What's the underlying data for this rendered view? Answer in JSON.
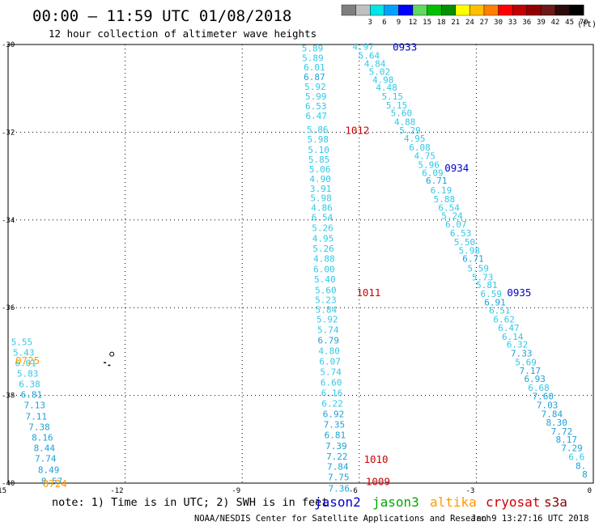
{
  "header": {
    "title": "00:00 – 11:59 UTC 01/08/2018",
    "subtitle": "12 hour collection of altimeter wave heights"
  },
  "colorbar": {
    "unit_label": "(ft)",
    "bins": [
      {
        "label": "",
        "color": "#7f7f7f"
      },
      {
        "label": "3",
        "color": "#c0c0c0"
      },
      {
        "label": "6",
        "color": "#00e5e5"
      },
      {
        "label": "9",
        "color": "#00a0ff"
      },
      {
        "label": "12",
        "color": "#0000ff"
      },
      {
        "label": "15",
        "color": "#5fd95f"
      },
      {
        "label": "18",
        "color": "#00c000"
      },
      {
        "label": "21",
        "color": "#009000"
      },
      {
        "label": "24",
        "color": "#ffff00"
      },
      {
        "label": "27",
        "color": "#ffc000"
      },
      {
        "label": "30",
        "color": "#ff8000"
      },
      {
        "label": "33",
        "color": "#ff0000"
      },
      {
        "label": "36",
        "color": "#c00000"
      },
      {
        "label": "39",
        "color": "#900000"
      },
      {
        "label": "42",
        "color": "#6a1a1a"
      },
      {
        "label": "45",
        "color": "#2a0a0a"
      },
      {
        "label": "70",
        "color": "#000000"
      }
    ]
  },
  "footer": {
    "note": "note: 1) Time is in UTC; 2) SWH is in feet",
    "credit": "NOAA/NESDIS Center for Satellite Applications and Research",
    "timestamp": "Jan  9 13:27:16 UTC 2018"
  },
  "legend": [
    {
      "name": "jason2",
      "color": "#0000cc"
    },
    {
      "name": "jason3",
      "color": "#00aa00"
    },
    {
      "name": "altika",
      "color": "#ff9900"
    },
    {
      "name": "cryosat",
      "color": "#cc0000"
    },
    {
      "name": "s3a",
      "color": "#880000"
    }
  ],
  "chart_data": {
    "type": "scatter",
    "xlim": [
      -15,
      0
    ],
    "ylim": [
      -40,
      -30
    ],
    "x_ticks": [
      "-15",
      "-12",
      "-9",
      "-6",
      "-3",
      "0"
    ],
    "y_ticks": [
      "-30",
      "-32",
      "-34",
      "-36",
      "-38",
      "-40"
    ],
    "grid": true,
    "value_colors": {
      "low": "#30c8e8",
      "high": "#1ea0d6"
    },
    "tracks": [
      {
        "satellite": "cryosat",
        "color": "#cc0000",
        "times": [
          {
            "label": "1012",
            "x": -6.05,
            "y": -31.95
          },
          {
            "label": "1011",
            "x": -5.76,
            "y": -35.65
          },
          {
            "label": "1010",
            "x": -5.57,
            "y": -39.45
          },
          {
            "label": "1009",
            "x": -5.52,
            "y": -39.95
          }
        ],
        "points": [
          {
            "x": -7.2,
            "y": -30.08,
            "v": "5.89"
          },
          {
            "x": -7.19,
            "y": -30.3,
            "v": "5.89"
          },
          {
            "x": -7.15,
            "y": -30.52,
            "v": "6.01"
          },
          {
            "x": -7.15,
            "y": -30.74,
            "v": "6.87"
          },
          {
            "x": -7.13,
            "y": -30.96,
            "v": "5.92"
          },
          {
            "x": -7.11,
            "y": -31.18,
            "v": "5.99"
          },
          {
            "x": -7.11,
            "y": -31.4,
            "v": "6.53"
          },
          {
            "x": -7.1,
            "y": -31.62,
            "v": "6.47"
          },
          {
            "x": -7.07,
            "y": -31.94,
            "v": "5.86"
          },
          {
            "x": -7.06,
            "y": -32.16,
            "v": "5.98"
          },
          {
            "x": -7.04,
            "y": -32.4,
            "v": "5.10"
          },
          {
            "x": -7.03,
            "y": -32.62,
            "v": "5.85"
          },
          {
            "x": -7.01,
            "y": -32.84,
            "v": "5.06"
          },
          {
            "x": -7.0,
            "y": -33.06,
            "v": "4.90"
          },
          {
            "x": -6.99,
            "y": -33.28,
            "v": "3.91"
          },
          {
            "x": -6.98,
            "y": -33.5,
            "v": "5.98"
          },
          {
            "x": -6.96,
            "y": -33.72,
            "v": "4.86"
          },
          {
            "x": -6.95,
            "y": -33.94,
            "v": "6.54"
          },
          {
            "x": -6.94,
            "y": -34.18,
            "v": "5.26"
          },
          {
            "x": -6.93,
            "y": -34.42,
            "v": "4.95"
          },
          {
            "x": -6.92,
            "y": -34.65,
            "v": "5.26"
          },
          {
            "x": -6.9,
            "y": -34.88,
            "v": "4.88"
          },
          {
            "x": -6.9,
            "y": -35.12,
            "v": "6.00"
          },
          {
            "x": -6.88,
            "y": -35.35,
            "v": "5.40"
          },
          {
            "x": -6.86,
            "y": -35.6,
            "v": "5.60"
          },
          {
            "x": -6.86,
            "y": -35.82,
            "v": "5.23"
          },
          {
            "x": -6.85,
            "y": -36.04,
            "v": "5.84"
          },
          {
            "x": -6.82,
            "y": -36.26,
            "v": "5.92"
          },
          {
            "x": -6.8,
            "y": -36.5,
            "v": "5.74"
          },
          {
            "x": -6.79,
            "y": -36.74,
            "v": "6.79"
          },
          {
            "x": -6.77,
            "y": -36.98,
            "v": "4.80"
          },
          {
            "x": -6.75,
            "y": -37.22,
            "v": "6.07"
          },
          {
            "x": -6.73,
            "y": -37.46,
            "v": "5.74"
          },
          {
            "x": -6.72,
            "y": -37.7,
            "v": "6.60"
          },
          {
            "x": -6.7,
            "y": -37.94,
            "v": "6.16"
          },
          {
            "x": -6.69,
            "y": -38.18,
            "v": "6.22"
          },
          {
            "x": -6.66,
            "y": -38.42,
            "v": "6.92"
          },
          {
            "x": -6.64,
            "y": -38.66,
            "v": "7.35"
          },
          {
            "x": -6.62,
            "y": -38.9,
            "v": "6.81"
          },
          {
            "x": -6.59,
            "y": -39.15,
            "v": "7.39"
          },
          {
            "x": -6.57,
            "y": -39.39,
            "v": "7.22"
          },
          {
            "x": -6.55,
            "y": -39.62,
            "v": "7.84"
          },
          {
            "x": -6.53,
            "y": -39.86,
            "v": "7.75"
          },
          {
            "x": -6.52,
            "y": -40.12,
            "v": "7.36"
          }
        ]
      },
      {
        "satellite": "jason2",
        "color": "#0000cc",
        "times": [
          {
            "label": "0933",
            "x": -4.83,
            "y": -30.05
          },
          {
            "label": "0934",
            "x": -3.5,
            "y": -32.8
          },
          {
            "label": "0935",
            "x": -1.9,
            "y": -35.65
          }
        ],
        "points": [
          {
            "x": -5.9,
            "y": -30.05,
            "v": "4.97"
          },
          {
            "x": -5.75,
            "y": -30.25,
            "v": "5.64"
          },
          {
            "x": -5.6,
            "y": -30.43,
            "v": "4.84"
          },
          {
            "x": -5.48,
            "y": -30.62,
            "v": "5.02"
          },
          {
            "x": -5.39,
            "y": -30.8,
            "v": "4.98"
          },
          {
            "x": -5.3,
            "y": -30.98,
            "v": "4.48"
          },
          {
            "x": -5.15,
            "y": -31.18,
            "v": "5.15"
          },
          {
            "x": -5.04,
            "y": -31.38,
            "v": "5.15"
          },
          {
            "x": -4.92,
            "y": -31.56,
            "v": "5.60"
          },
          {
            "x": -4.83,
            "y": -31.76,
            "v": "4.88"
          },
          {
            "x": -4.7,
            "y": -31.96,
            "v": "5.29"
          },
          {
            "x": -4.58,
            "y": -32.14,
            "v": "4.95"
          },
          {
            "x": -4.45,
            "y": -32.34,
            "v": "6.08"
          },
          {
            "x": -4.32,
            "y": -32.54,
            "v": "4.75"
          },
          {
            "x": -4.22,
            "y": -32.74,
            "v": "5.96"
          },
          {
            "x": -4.12,
            "y": -32.92,
            "v": "6.09"
          },
          {
            "x": -4.02,
            "y": -33.1,
            "v": "6.71"
          },
          {
            "x": -3.9,
            "y": -33.32,
            "v": "6.19"
          },
          {
            "x": -3.82,
            "y": -33.52,
            "v": "5.88"
          },
          {
            "x": -3.7,
            "y": -33.72,
            "v": "6.54"
          },
          {
            "x": -3.62,
            "y": -33.9,
            "v": "5.24"
          },
          {
            "x": -3.52,
            "y": -34.1,
            "v": "6.07"
          },
          {
            "x": -3.4,
            "y": -34.3,
            "v": "6.53"
          },
          {
            "x": -3.3,
            "y": -34.5,
            "v": "5.50"
          },
          {
            "x": -3.18,
            "y": -34.7,
            "v": "5.98"
          },
          {
            "x": -3.08,
            "y": -34.88,
            "v": "6.71"
          },
          {
            "x": -2.95,
            "y": -35.1,
            "v": "5.59"
          },
          {
            "x": -2.84,
            "y": -35.3,
            "v": "5.73"
          },
          {
            "x": -2.73,
            "y": -35.48,
            "v": "5.81"
          },
          {
            "x": -2.62,
            "y": -35.68,
            "v": "6.59"
          },
          {
            "x": -2.52,
            "y": -35.88,
            "v": "6.91"
          },
          {
            "x": -2.4,
            "y": -36.06,
            "v": "6.51"
          },
          {
            "x": -2.29,
            "y": -36.26,
            "v": "6.62"
          },
          {
            "x": -2.17,
            "y": -36.46,
            "v": "6.47"
          },
          {
            "x": -2.07,
            "y": -36.66,
            "v": "6.14"
          },
          {
            "x": -1.95,
            "y": -36.84,
            "v": "6.32"
          },
          {
            "x": -1.84,
            "y": -37.04,
            "v": "7.33"
          },
          {
            "x": -1.73,
            "y": -37.24,
            "v": "5.69"
          },
          {
            "x": -1.62,
            "y": -37.44,
            "v": "7.17"
          },
          {
            "x": -1.5,
            "y": -37.62,
            "v": "6.93"
          },
          {
            "x": -1.4,
            "y": -37.82,
            "v": "6.68"
          },
          {
            "x": -1.29,
            "y": -38.02,
            "v": "7.60"
          },
          {
            "x": -1.18,
            "y": -38.22,
            "v": "7.03"
          },
          {
            "x": -1.06,
            "y": -38.42,
            "v": "7.84"
          },
          {
            "x": -0.94,
            "y": -38.62,
            "v": "8.30"
          },
          {
            "x": -0.81,
            "y": -38.82,
            "v": "7.72"
          },
          {
            "x": -0.69,
            "y": -39.0,
            "v": "8.17"
          },
          {
            "x": -0.55,
            "y": -39.2,
            "v": "7.29"
          },
          {
            "x": -0.43,
            "y": -39.4,
            "v": "6.6"
          },
          {
            "x": -0.32,
            "y": -39.6,
            "v": "8."
          },
          {
            "x": -0.22,
            "y": -39.8,
            "v": "8"
          }
        ]
      },
      {
        "satellite": "altika",
        "color": "#ff9900",
        "times": [
          {
            "label": "0725",
            "x": -14.5,
            "y": -37.2
          },
          {
            "label": "0724",
            "x": -13.8,
            "y": -40.0
          }
        ],
        "points": [
          {
            "x": -14.65,
            "y": -36.78,
            "v": "5.55"
          },
          {
            "x": -14.6,
            "y": -37.02,
            "v": "5.43"
          },
          {
            "x": -14.55,
            "y": -37.26,
            "v": "6.01"
          },
          {
            "x": -14.5,
            "y": -37.5,
            "v": "5.83"
          },
          {
            "x": -14.45,
            "y": -37.74,
            "v": "6.38"
          },
          {
            "x": -14.4,
            "y": -37.98,
            "v": "6.81"
          },
          {
            "x": -14.32,
            "y": -38.22,
            "v": "7.13"
          },
          {
            "x": -14.28,
            "y": -38.48,
            "v": "7.11"
          },
          {
            "x": -14.2,
            "y": -38.72,
            "v": "7.38"
          },
          {
            "x": -14.12,
            "y": -38.96,
            "v": "8.16"
          },
          {
            "x": -14.07,
            "y": -39.2,
            "v": "8.44"
          },
          {
            "x": -14.04,
            "y": -39.44,
            "v": "7.74"
          },
          {
            "x": -13.96,
            "y": -39.7,
            "v": "8.49"
          },
          {
            "x": -13.88,
            "y": -39.95,
            "v": "8.57"
          }
        ]
      }
    ],
    "land": [
      {
        "x": -12.34,
        "y": -37.06
      },
      {
        "x": -12.55,
        "y": -37.24
      },
      {
        "x": -12.44,
        "y": -37.3
      }
    ]
  }
}
